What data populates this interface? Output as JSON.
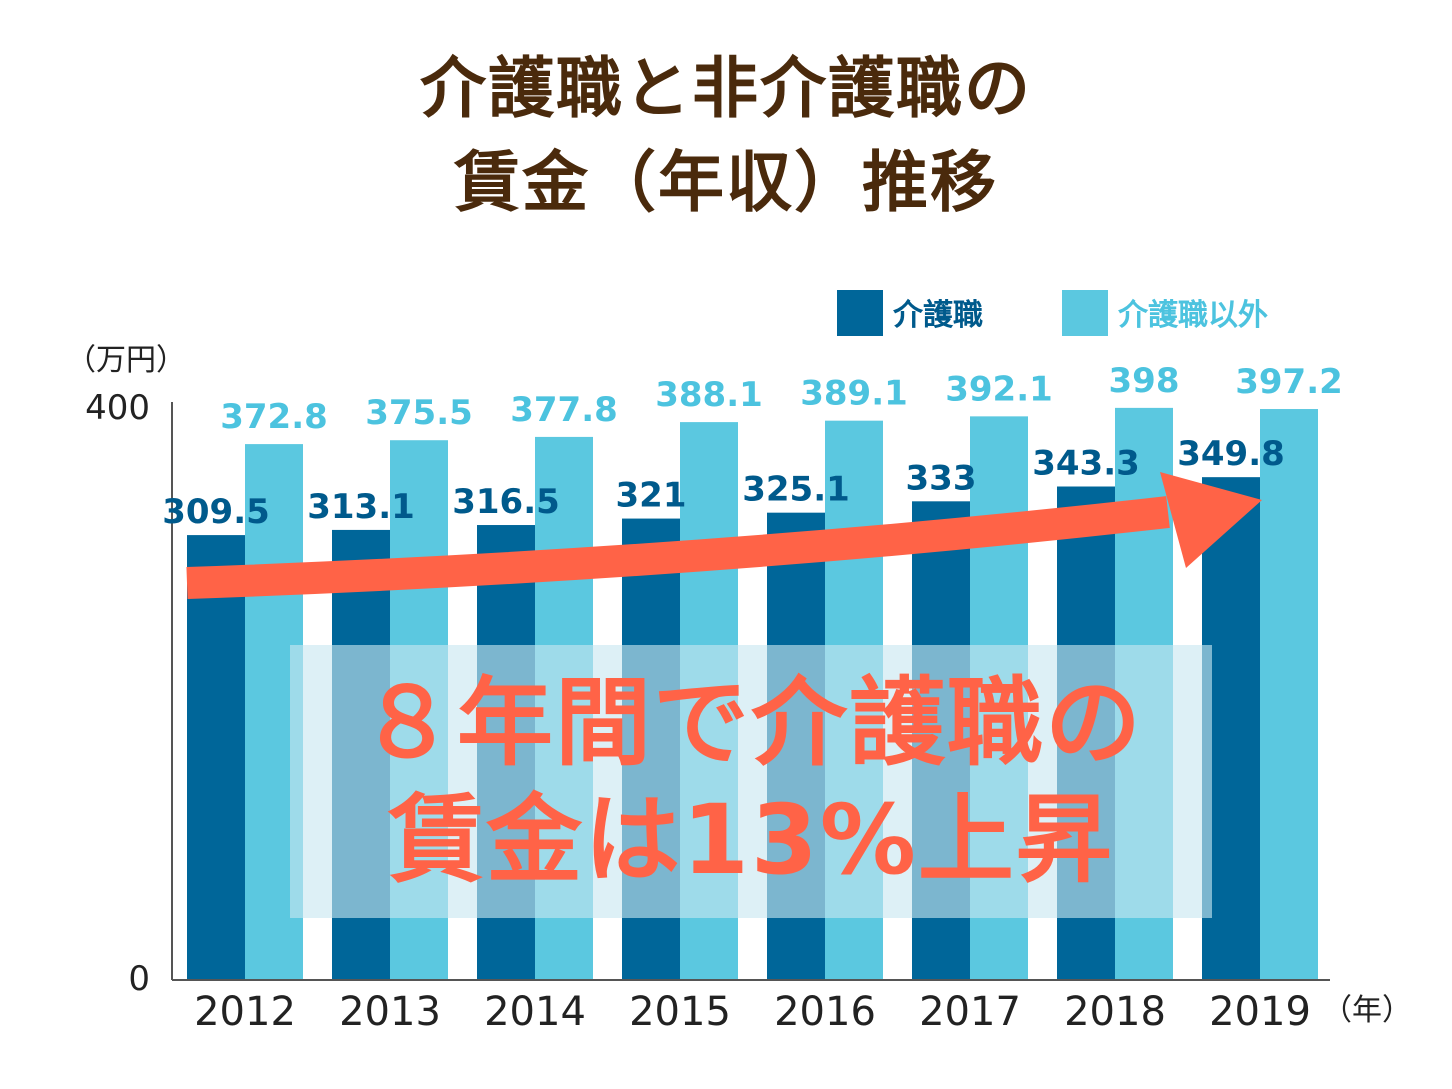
{
  "title_line1": "介護職と非介護職の",
  "title_line2": "賃金（年収）推移",
  "overlay_line1": "８年間で介護職の",
  "overlay_line2": "賃金は13%上昇",
  "colors": {
    "title": "#4a2a0c",
    "series_care": "#006699",
    "series_noncare": "#5bc8e0",
    "label_care": "#005a8c",
    "label_noncare": "#4cc3df",
    "arrow": "#ff6347",
    "overlay_box": "#c8e6f0"
  },
  "chart_data": {
    "type": "bar",
    "categories": [
      "2012",
      "2013",
      "2014",
      "2015",
      "2016",
      "2017",
      "2018",
      "2019"
    ],
    "series": [
      {
        "name": "介護職",
        "values": [
          309.5,
          313.1,
          316.5,
          321,
          325.1,
          333,
          343.3,
          349.8
        ],
        "labels": [
          "309.5",
          "313.1",
          "316.5",
          "321",
          "325.1",
          "333",
          "343.3",
          "349.8"
        ]
      },
      {
        "name": "介護職以外",
        "values": [
          372.8,
          375.5,
          377.8,
          388.1,
          389.1,
          392.1,
          398,
          397.2
        ],
        "labels": [
          "372.8",
          "375.5",
          "377.8",
          "388.1",
          "389.1",
          "392.1",
          "398",
          "397.2"
        ]
      }
    ],
    "y_unit": "（万円）",
    "x_unit": "（年）",
    "ylim": [
      0,
      400
    ],
    "yticks": [
      "0",
      "400"
    ],
    "legend_position": "top-right",
    "grid": false
  }
}
